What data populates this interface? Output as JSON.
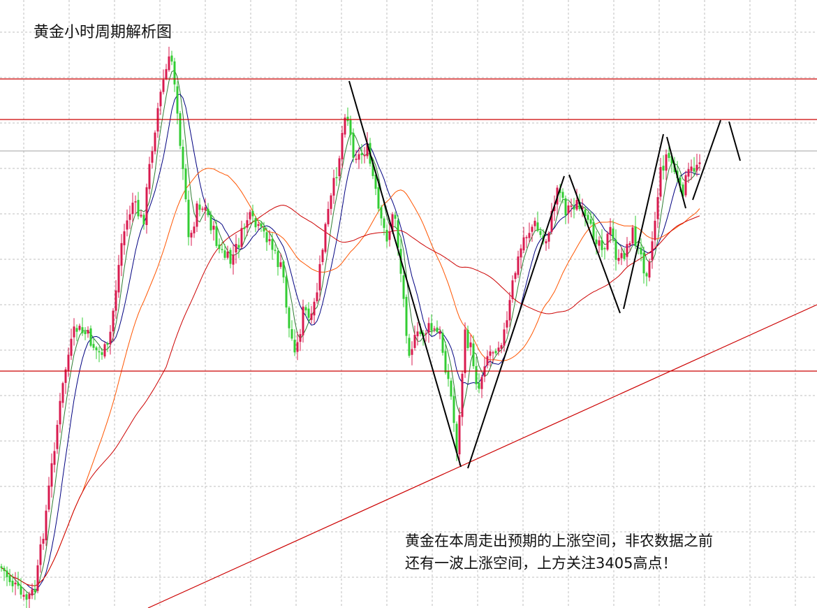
{
  "chart_data": {
    "type": "candlestick",
    "title": "黄金小时周期解析图",
    "annotation_lines": [
      "黄金在本周走出预期的上涨空间，非农数据之前",
      "还有一波上涨空间，上方关注3405高点！"
    ],
    "grid": true,
    "colors": {
      "up": "#d81b4f",
      "down": "#33cc33",
      "ma_fast": "#000080",
      "ma_mid": "#2e7d32",
      "ma_slow": "#ff5500",
      "ma_long": "#cc0000",
      "level_line": "#cc0000",
      "wave_path": "#000000",
      "grid": "#bfbfbf"
    }
  }
}
